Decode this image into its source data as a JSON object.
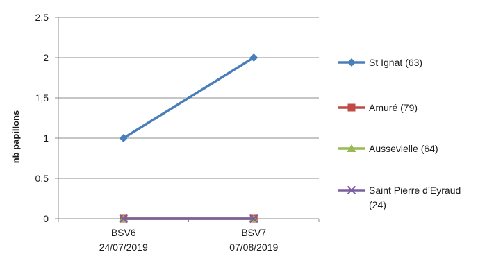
{
  "chart_data": {
    "type": "line",
    "ylabel": "nb papillons",
    "ylim": [
      0,
      2.5
    ],
    "yticks": [
      {
        "value": 0,
        "label": "0"
      },
      {
        "value": 0.5,
        "label": "0,5"
      },
      {
        "value": 1,
        "label": "1"
      },
      {
        "value": 1.5,
        "label": "1,5"
      },
      {
        "value": 2,
        "label": "2"
      },
      {
        "value": 2.5,
        "label": "2,5"
      }
    ],
    "categories": [
      {
        "line1": "BSV6",
        "line2": "24/07/2019"
      },
      {
        "line1": "BSV7",
        "line2": "07/08/2019"
      }
    ],
    "grid": true,
    "legend_position": "right",
    "series": [
      {
        "name_line1": "St Ignat (63)",
        "name_line2": "",
        "values": [
          1,
          2
        ],
        "color": "#4a7ebb",
        "marker": "diamond"
      },
      {
        "name_line1": "Amuré (79)",
        "name_line2": "",
        "values": [
          0,
          0
        ],
        "color": "#be4b48",
        "marker": "square"
      },
      {
        "name_line1": "Aussevielle (64)",
        "name_line2": "",
        "values": [
          0,
          0
        ],
        "color": "#98b954",
        "marker": "triangle"
      },
      {
        "name_line1": "Saint Pierre d’Eyraud",
        "name_line2": "(24)",
        "values": [
          0,
          0
        ],
        "color": "#7d5fa0",
        "marker": "x"
      }
    ]
  }
}
